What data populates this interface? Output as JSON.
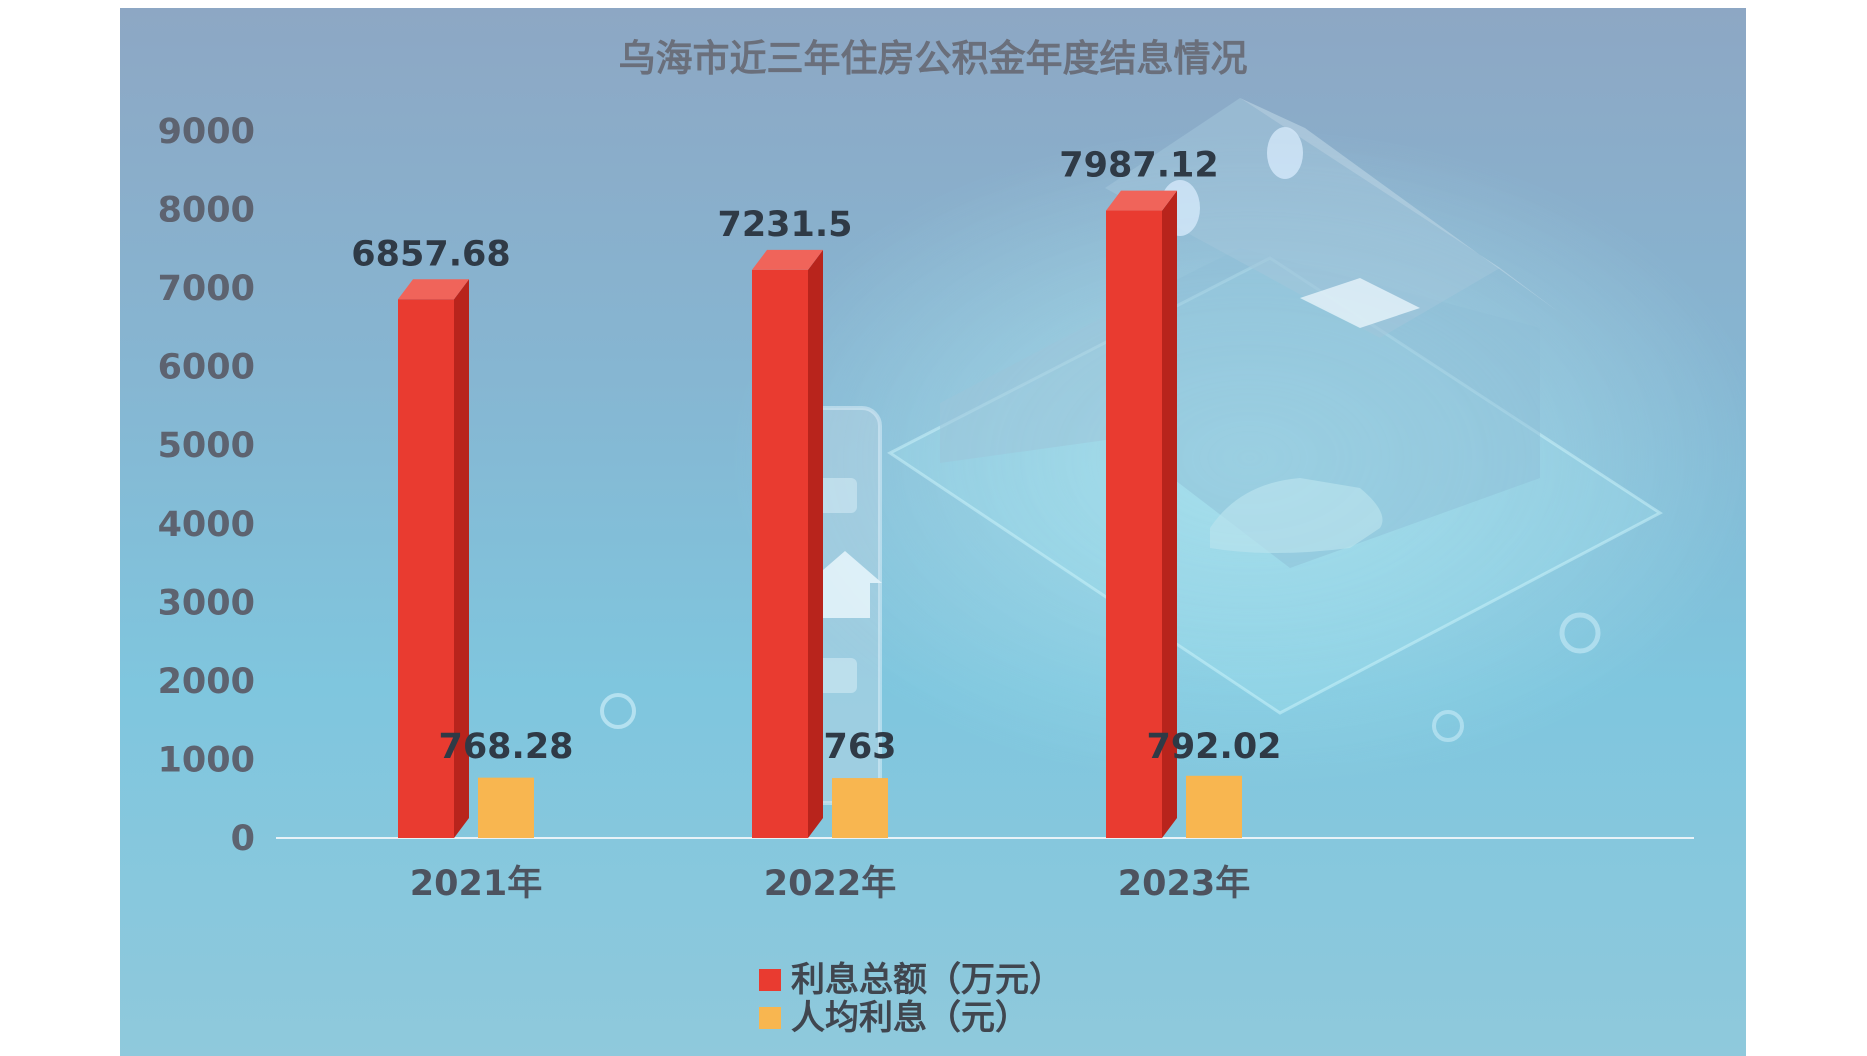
{
  "chart_data": {
    "type": "bar",
    "title": "乌海市近三年住房公积金年度结息情况",
    "categories": [
      "2021年",
      "2022年",
      "2023年"
    ],
    "series": [
      {
        "name": "利息总额（万元）",
        "values": [
          6857.68,
          7231.5,
          7987.12
        ],
        "color": "#e93b30",
        "labels": [
          "6857.68",
          "7231.5",
          "7987.12"
        ]
      },
      {
        "name": "人均利息（元）",
        "values": [
          768.28,
          763,
          792.02
        ],
        "color": "#f8b650",
        "labels": [
          "768.28",
          "763",
          "792.02"
        ]
      }
    ],
    "ylim": [
      0,
      9000
    ],
    "yticks": [
      "0",
      "1000",
      "2000",
      "3000",
      "4000",
      "5000",
      "6000",
      "7000",
      "8000",
      "9000"
    ],
    "legend_position": "bottom-center",
    "grid": false
  }
}
